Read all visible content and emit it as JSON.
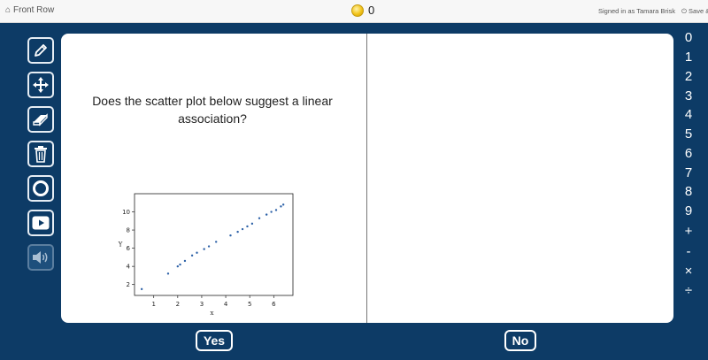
{
  "topbar": {
    "app_name": "Front Row",
    "coin_count": "0",
    "signed_in": "Signed in as Tamara Brisk",
    "save_label": "Save &"
  },
  "toolbar": {
    "tools": [
      {
        "icon": "pencil-icon",
        "enabled": true
      },
      {
        "icon": "move-icon",
        "enabled": true
      },
      {
        "icon": "eraser-icon",
        "enabled": true
      },
      {
        "icon": "trash-icon",
        "enabled": true
      },
      {
        "icon": "circle-icon",
        "enabled": true
      },
      {
        "icon": "play-icon",
        "enabled": true
      },
      {
        "icon": "speaker-icon",
        "enabled": false
      }
    ]
  },
  "question": {
    "text": "Does the scatter plot below suggest a linear association?"
  },
  "chart_data": {
    "type": "scatter",
    "xlabel": "x",
    "ylabel": "Y",
    "xlim": [
      0.2,
      6.8
    ],
    "ylim": [
      0.8,
      12
    ],
    "xticks": [
      1,
      2,
      3,
      4,
      5,
      6
    ],
    "yticks": [
      2,
      4,
      6,
      8,
      10
    ],
    "points": [
      [
        0.5,
        1.5
      ],
      [
        1.6,
        3.2
      ],
      [
        2.0,
        4.0
      ],
      [
        2.1,
        4.2
      ],
      [
        2.3,
        4.6
      ],
      [
        2.6,
        5.2
      ],
      [
        2.8,
        5.5
      ],
      [
        3.1,
        5.9
      ],
      [
        3.3,
        6.2
      ],
      [
        3.6,
        6.7
      ],
      [
        4.2,
        7.4
      ],
      [
        4.5,
        7.8
      ],
      [
        4.7,
        8.1
      ],
      [
        4.9,
        8.4
      ],
      [
        5.1,
        8.7
      ],
      [
        5.4,
        9.3
      ],
      [
        5.7,
        9.7
      ],
      [
        5.9,
        10.0
      ],
      [
        6.1,
        10.2
      ],
      [
        6.3,
        10.6
      ],
      [
        6.4,
        10.8
      ]
    ]
  },
  "keypad": [
    "0",
    "1",
    "2",
    "3",
    "4",
    "5",
    "6",
    "7",
    "8",
    "9",
    "+",
    "-",
    "×",
    "÷"
  ],
  "answers": {
    "yes": "Yes",
    "no": "No"
  },
  "colors": {
    "background": "#0d3b66",
    "marker": "#2e62a8"
  }
}
